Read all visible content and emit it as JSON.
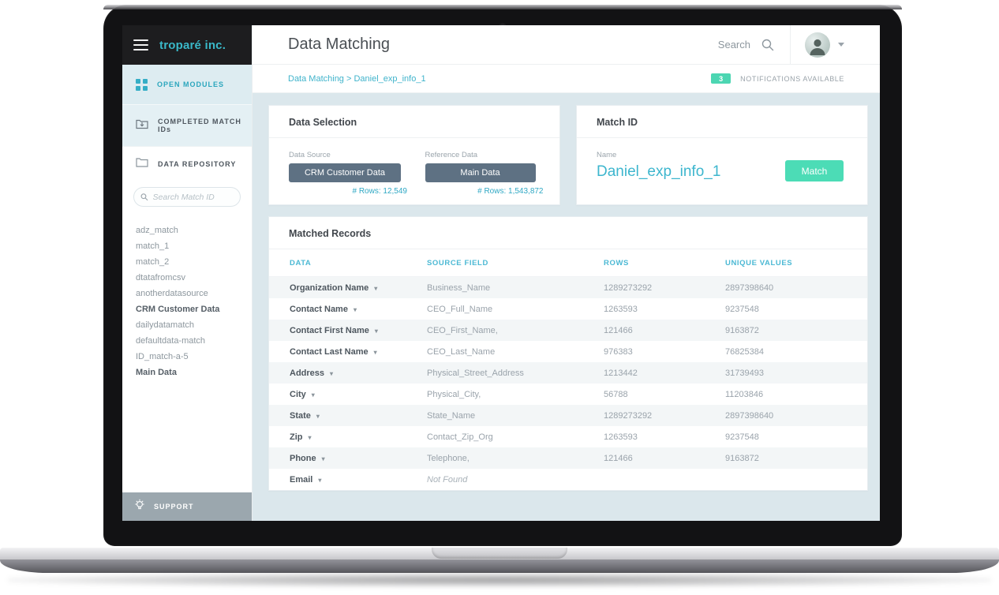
{
  "app": {
    "logo": "troparé inc.",
    "header": {
      "title": "Data Matching",
      "search_label": "Search"
    },
    "breadcrumb": "Data Matching > Daniel_exp_info_1",
    "notifications": {
      "count": "3",
      "label": "NOTIFICATIONS AVAILABLE"
    },
    "sidebar": {
      "open_modules": "OPEN MODULES",
      "completed_match_ids": "COMPLETED MATCH IDs",
      "data_repository": "DATA REPOSITORY",
      "search_placeholder": "Search Match ID",
      "match_ids": [
        {
          "label": "adz_match",
          "bold": false
        },
        {
          "label": "match_1",
          "bold": false
        },
        {
          "label": "match_2",
          "bold": false
        },
        {
          "label": "dtatafromcsv",
          "bold": false
        },
        {
          "label": "anotherdatasource",
          "bold": false
        },
        {
          "label": "CRM Customer Data",
          "bold": true
        },
        {
          "label": "dailydatamatch",
          "bold": false
        },
        {
          "label": "defaultdata-match",
          "bold": false
        },
        {
          "label": "ID_match-a-5",
          "bold": false
        },
        {
          "label": "Main Data",
          "bold": true
        }
      ],
      "support_label": "SUPPORT"
    },
    "data_selection": {
      "title": "Data Selection",
      "data_source": {
        "label": "Data Source",
        "value": "CRM Customer Data",
        "rows": "# Rows: 12,549"
      },
      "reference_data": {
        "label": "Reference Data",
        "value": "Main Data",
        "rows": "# Rows: 1,543,872"
      }
    },
    "match_id": {
      "title": "Match ID",
      "name_label": "Name",
      "name_value": "Daniel_exp_info_1",
      "button_label": "Match"
    },
    "matched_records": {
      "title": "Matched Records",
      "columns": [
        "DATA",
        "SOURCE FIELD",
        "ROWS",
        "UNIQUE VALUES"
      ],
      "rows": [
        {
          "data": "Organization Name",
          "source": "Business_Name",
          "rows": "1289273292",
          "unique": "2897398640",
          "italic": false
        },
        {
          "data": "Contact Name",
          "source": "CEO_Full_Name",
          "rows": "1263593",
          "unique": "9237548",
          "italic": false
        },
        {
          "data": "Contact First Name",
          "source": "CEO_First_Name,",
          "rows": "121466",
          "unique": "9163872",
          "italic": false
        },
        {
          "data": "Contact Last Name",
          "source": "CEO_Last_Name",
          "rows": "976383",
          "unique": "76825384",
          "italic": false
        },
        {
          "data": "Address",
          "source": "Physical_Street_Address",
          "rows": "1213442",
          "unique": "31739493",
          "italic": false
        },
        {
          "data": "City",
          "source": "Physical_City,",
          "rows": "56788",
          "unique": "11203846",
          "italic": false
        },
        {
          "data": "State",
          "source": "State_Name",
          "rows": "1289273292",
          "unique": "2897398640",
          "italic": false
        },
        {
          "data": "Zip",
          "source": "Contact_Zip_Org",
          "rows": "1263593",
          "unique": "9237548",
          "italic": false
        },
        {
          "data": "Phone",
          "source": "Telephone,",
          "rows": "121466",
          "unique": "9163872",
          "italic": false
        },
        {
          "data": "Email",
          "source": "Not Found",
          "rows": "",
          "unique": "",
          "italic": true
        }
      ]
    },
    "colors": {
      "accent": "#3ab9c9",
      "mint": "#4cdcb6",
      "chip": "#5e7183",
      "header_teal": "#4cb9d4"
    }
  }
}
